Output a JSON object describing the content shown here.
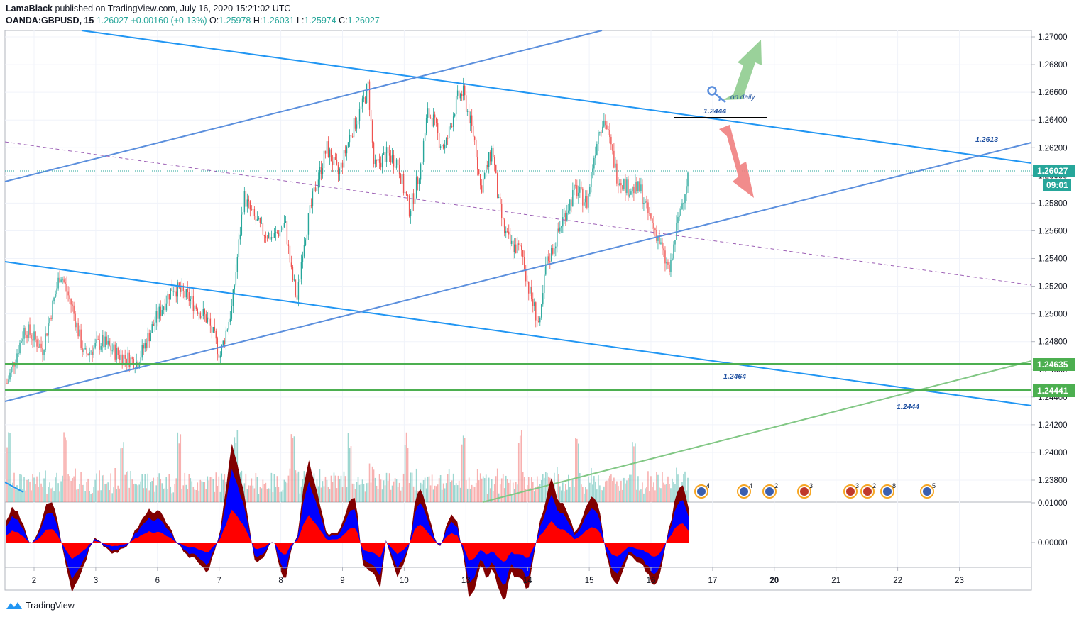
{
  "header": {
    "author": "LamaBlack",
    "published": "published on TradingView.com, July 16, 2020 15:21:02 UTC",
    "symbol": "OANDA:GBPUSD, 15",
    "last": "1.26027",
    "change": "+0.00160 (+0.13%)",
    "open_label": "O:",
    "open": "1.25978",
    "high_label": "H:",
    "high": "1.26031",
    "low_label": "L:",
    "low": "1.25974",
    "close_label": "C:",
    "close": "1.26027"
  },
  "footer": {
    "brand": "TradingView"
  },
  "colors": {
    "up": "#26a69a",
    "down": "#ef5350",
    "channel": "#2196f3",
    "support": "#4caf50",
    "price_tag": "#26a69a",
    "osc_up": "#0000ff",
    "osc_red": "#ff0000",
    "osc_dark": "#800000"
  },
  "chart_data": {
    "type": "line",
    "y_ticks": [
      "1.27000",
      "1.26800",
      "1.26600",
      "1.26400",
      "1.26200",
      "1.26000",
      "1.25800",
      "1.25600",
      "1.25400",
      "1.25200",
      "1.25000",
      "1.24800",
      "1.24600",
      "1.24400",
      "1.24200",
      "1.24000",
      "1.23800"
    ],
    "x_ticks": [
      "2",
      "3",
      "6",
      "7",
      "8",
      "9",
      "10",
      "13",
      "14",
      "15",
      "16",
      "17",
      "20",
      "21",
      "22",
      "23"
    ],
    "ylim": [
      1.2368,
      1.2702
    ],
    "last_price": {
      "value": 1.26027,
      "label": "1.26027",
      "countdown": "09:01"
    },
    "support_levels": [
      {
        "value": 1.24635,
        "label": "1.24635"
      },
      {
        "value": 1.24441,
        "label": "1.24441"
      }
    ],
    "annotations": [
      "1.2444",
      "on daily",
      "1.2613",
      "1.2464",
      "1.2444"
    ],
    "oscillator": {
      "ticks": [
        "0.01000",
        "0.00000"
      ]
    },
    "event_icons": [
      {
        "count": "4"
      },
      {
        "count": "4"
      },
      {
        "count": "2"
      },
      {
        "count": "3"
      },
      {
        "count": "3"
      },
      {
        "count": "2"
      },
      {
        "count": "8"
      },
      {
        "count": "5"
      }
    ],
    "series": [
      {
        "key": [
          [
            0,
            1.245
          ],
          [
            3,
            1.249
          ],
          [
            6,
            1.2475
          ],
          [
            9,
            1.253
          ],
          [
            11,
            1.2505
          ],
          [
            13,
            1.247
          ],
          [
            16,
            1.248
          ],
          [
            19,
            1.247
          ],
          [
            22,
            1.2465
          ],
          [
            25,
            1.2495
          ],
          [
            28,
            1.252
          ],
          [
            31,
            1.251
          ],
          [
            34,
            1.2495
          ],
          [
            36,
            1.247
          ],
          [
            38,
            1.2505
          ],
          [
            39,
            1.2545
          ],
          [
            40,
            1.2585
          ],
          [
            41,
            1.2575
          ],
          [
            43,
            1.256
          ],
          [
            45,
            1.2555
          ],
          [
            47,
            1.2565
          ],
          [
            48,
            1.253
          ],
          [
            49,
            1.251
          ],
          [
            50,
            1.255
          ],
          [
            52,
            1.259
          ],
          [
            54,
            1.262
          ],
          [
            56,
            1.26
          ],
          [
            58,
            1.263
          ],
          [
            60,
            1.265
          ],
          [
            61,
            1.2665
          ],
          [
            62,
            1.2605
          ],
          [
            64,
            1.2615
          ],
          [
            66,
            1.261
          ],
          [
            67,
            1.259
          ],
          [
            68,
            1.2575
          ],
          [
            69,
            1.259
          ],
          [
            70,
            1.261
          ],
          [
            71,
            1.2645
          ],
          [
            72,
            1.264
          ],
          [
            73,
            1.2625
          ],
          [
            74,
            1.262
          ],
          [
            76,
            1.2655
          ],
          [
            77,
            1.266
          ],
          [
            79,
            1.2625
          ],
          [
            80,
            1.259
          ],
          [
            82,
            1.262
          ],
          [
            83,
            1.258
          ],
          [
            84,
            1.256
          ],
          [
            85,
            1.255
          ],
          [
            87,
            1.2545
          ],
          [
            88,
            1.252
          ],
          [
            89,
            1.2505
          ],
          [
            90,
            1.249
          ],
          [
            91,
            1.2535
          ],
          [
            92,
            1.2545
          ],
          [
            94,
            1.257
          ],
          [
            96,
            1.259
          ],
          [
            98,
            1.258
          ],
          [
            99,
            1.261
          ],
          [
            100,
            1.2635
          ],
          [
            101,
            1.264
          ],
          [
            102,
            1.262
          ],
          [
            103,
            1.26
          ],
          [
            105,
            1.259
          ],
          [
            107,
            1.259
          ],
          [
            108,
            1.2575
          ],
          [
            110,
            1.2555
          ],
          [
            111,
            1.254
          ],
          [
            112,
            1.253
          ],
          [
            113,
            1.256
          ],
          [
            114,
            1.258
          ],
          [
            115,
            1.26
          ]
        ]
      }
    ]
  }
}
